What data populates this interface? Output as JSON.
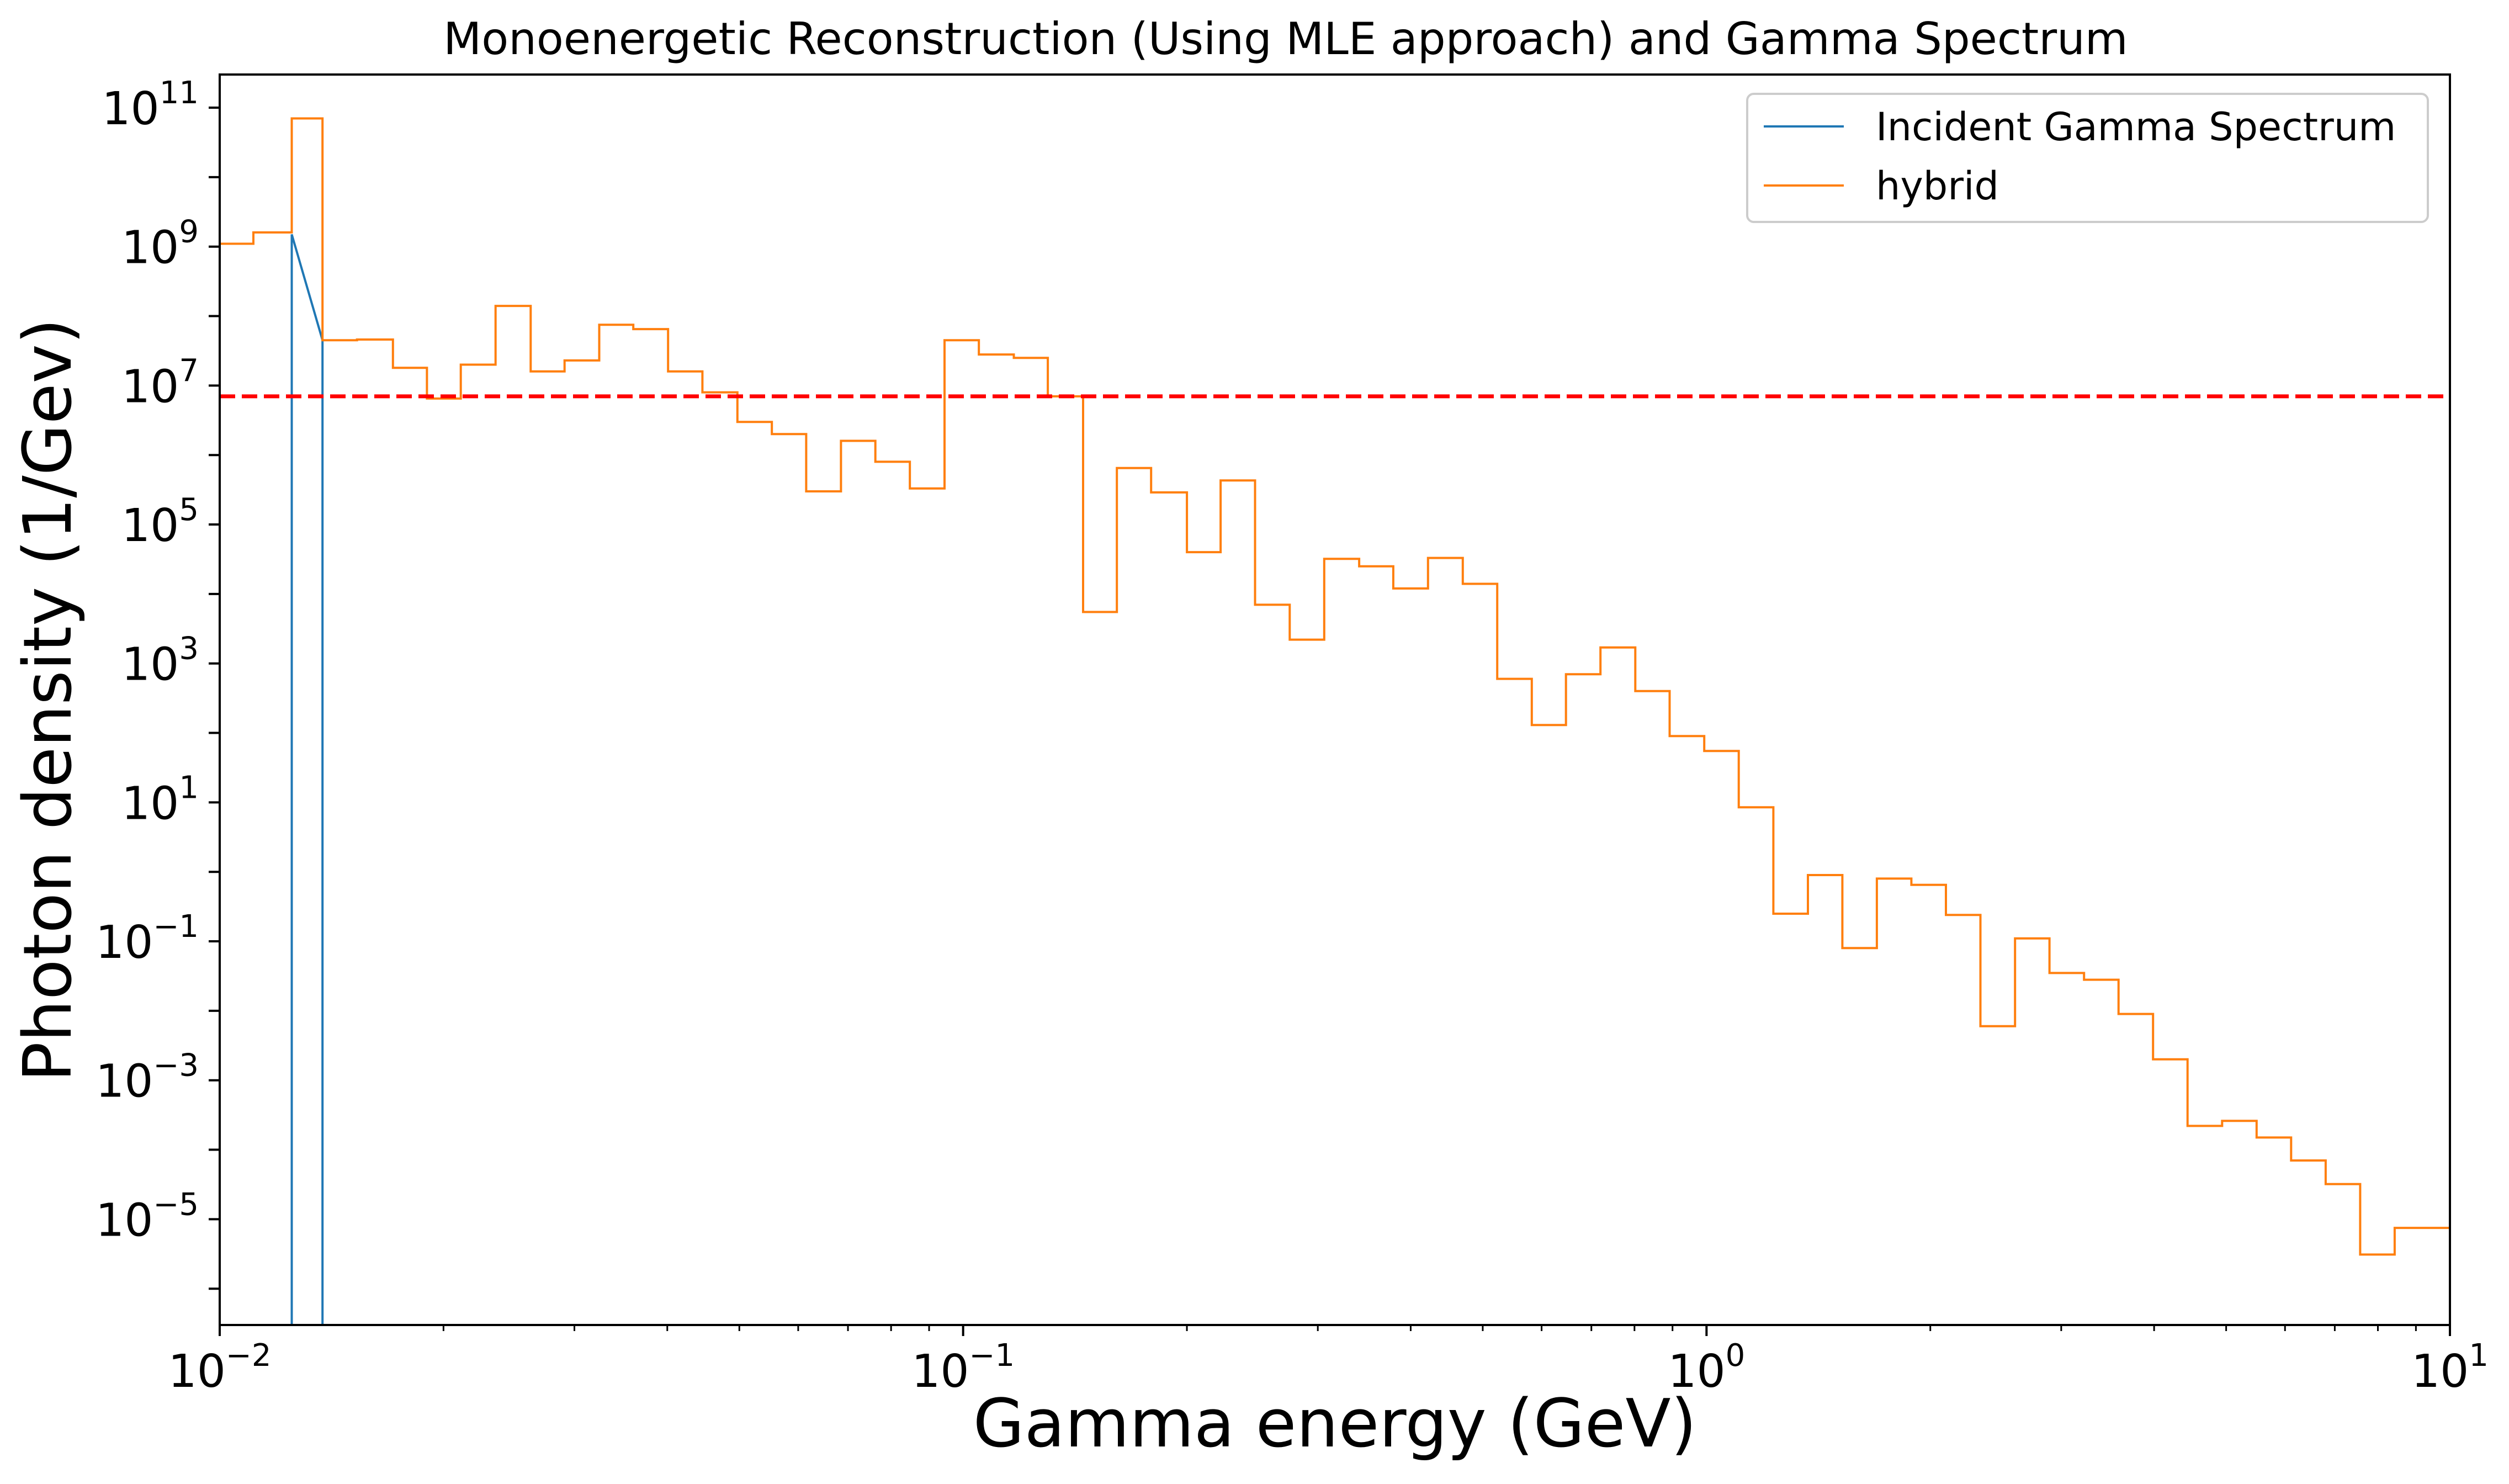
{
  "chart_data": {
    "type": "line",
    "title": "Monoenergetic Reconstruction (Using MLE approach) and Gamma Spectrum",
    "xlabel": "Gamma energy (GeV)",
    "ylabel": "Photon density (1/Gev)",
    "xscale": "log",
    "yscale": "log",
    "xlim": [
      0.01,
      10
    ],
    "ylim": [
      3e-07,
      300000000000.0
    ],
    "xticks": [
      {
        "value": 0.01,
        "base": "10",
        "exp": "−2"
      },
      {
        "value": 0.1,
        "base": "10",
        "exp": "−1"
      },
      {
        "value": 1,
        "base": "10",
        "exp": "0"
      },
      {
        "value": 10,
        "base": "10",
        "exp": "1"
      }
    ],
    "yticks": [
      {
        "value": 100000000000.0,
        "base": "10",
        "exp": "11"
      },
      {
        "value": 1000000000.0,
        "base": "10",
        "exp": "9"
      },
      {
        "value": 10000000.0,
        "base": "10",
        "exp": "7"
      },
      {
        "value": 100000.0,
        "base": "10",
        "exp": "5"
      },
      {
        "value": 1000.0,
        "base": "10",
        "exp": "3"
      },
      {
        "value": 10.0,
        "base": "10",
        "exp": "1"
      },
      {
        "value": 0.1,
        "base": "10",
        "exp": "−1"
      },
      {
        "value": 0.001,
        "base": "10",
        "exp": "−3"
      },
      {
        "value": 1e-05,
        "base": "10",
        "exp": "−5"
      }
    ],
    "legend_position": "top-right",
    "series": [
      {
        "name": "Incident Gamma Spectrum",
        "color": "#1f77b4",
        "style": "step",
        "x": [
          0.0125,
          0.0125,
          0.01375,
          0.01375
        ],
        "y": [
          3e-07,
          1500000000.0,
          45000000.0,
          3e-07
        ]
      },
      {
        "name": "hybrid",
        "color": "#ff7f0e",
        "style": "steps-post",
        "x": [
          0.01,
          0.0111,
          0.0125,
          0.01375,
          0.0153,
          0.0171,
          0.019,
          0.0211,
          0.0235,
          0.0262,
          0.0291,
          0.0324,
          0.036,
          0.0401,
          0.0446,
          0.0497,
          0.0553,
          0.0615,
          0.0685,
          0.0762,
          0.0848,
          0.0944,
          0.105,
          0.117,
          0.13,
          0.145,
          0.161,
          0.179,
          0.2,
          0.222,
          0.247,
          0.275,
          0.306,
          0.341,
          0.379,
          0.422,
          0.47,
          0.523,
          0.582,
          0.647,
          0.72,
          0.802,
          0.892,
          0.993,
          1.105,
          1.23,
          1.369,
          1.523,
          1.695,
          1.886,
          2.099,
          2.336,
          2.6,
          2.893,
          3.22,
          3.583,
          3.987,
          4.437,
          4.938,
          5.495,
          6.115,
          6.805,
          7.573,
          8.427,
          9.378
        ],
        "y": [
          1100000000.0,
          1600000000.0,
          70000000000.0,
          45000000.0,
          46000000.0,
          18000000.0,
          6500000.0,
          20000000.0,
          140000000.0,
          16000000.0,
          23000000.0,
          75000000.0,
          65000000.0,
          16000000.0,
          8000000.0,
          3000000.0,
          2000000.0,
          300000.0,
          1600000.0,
          800000.0,
          330000.0,
          45000000.0,
          28000000.0,
          25000000.0,
          7000000.0,
          5500.0,
          650000.0,
          290000.0,
          40000.0,
          430000.0,
          7000.0,
          2200.0,
          32000.0,
          25000.0,
          12000.0,
          33000.0,
          14000.0,
          600,
          130,
          700,
          1700,
          400,
          90,
          55,
          8.5,
          0.25,
          0.9,
          0.08,
          0.8,
          0.65,
          0.24,
          0.006,
          0.11,
          0.035,
          0.028,
          0.009,
          0.002,
          0.00022,
          0.00026,
          0.00015,
          7e-05,
          3.2e-05,
          3.1e-06,
          7.5e-06,
          7.5e-06
        ]
      }
    ],
    "reference_line": {
      "type": "horizontal",
      "value": 7000000.0,
      "color": "#ff0000",
      "style": "dashed"
    }
  }
}
